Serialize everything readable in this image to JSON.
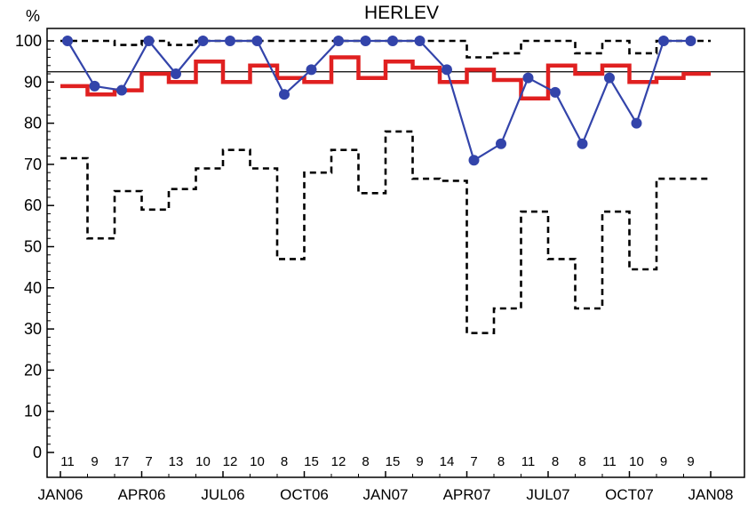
{
  "chart_data": {
    "type": "line",
    "title": "HERLEV",
    "ylabel": "%",
    "xlabel": "",
    "ylim": [
      0,
      100
    ],
    "xlim": [
      "2006-01",
      "2008-01"
    ],
    "yticks": [
      "0",
      "10",
      "20",
      "30",
      "40",
      "50",
      "60",
      "70",
      "80",
      "90",
      "100"
    ],
    "xticks": [
      {
        "label": "JAN06",
        "x": "2006-01"
      },
      {
        "label": "APR06",
        "x": "2006-04"
      },
      {
        "label": "JUL06",
        "x": "2006-07"
      },
      {
        "label": "OCT06",
        "x": "2006-10"
      },
      {
        "label": "JAN07",
        "x": "2007-01"
      },
      {
        "label": "APR07",
        "x": "2007-04"
      },
      {
        "label": "JUL07",
        "x": "2007-07"
      },
      {
        "label": "OCT07",
        "x": "2007-10"
      },
      {
        "label": "JAN08",
        "x": "2008-01"
      }
    ],
    "months": [
      "2006-01",
      "2006-02",
      "2006-03",
      "2006-04",
      "2006-05",
      "2006-06",
      "2006-07",
      "2006-08",
      "2006-09",
      "2006-10",
      "2006-11",
      "2006-12",
      "2007-01",
      "2007-02",
      "2007-03",
      "2007-04",
      "2007-05",
      "2007-06",
      "2007-07",
      "2007-08",
      "2007-09",
      "2007-10",
      "2007-11",
      "2007-12"
    ],
    "counts": [
      "11",
      "9",
      "17",
      "7",
      "13",
      "10",
      "12",
      "10",
      "8",
      "15",
      "12",
      "8",
      "15",
      "9",
      "14",
      "7",
      "8",
      "11",
      "8",
      "8",
      "11",
      "10",
      "9",
      "9"
    ],
    "reference_line": 92.5,
    "series": [
      {
        "role": "observed",
        "color": "#3344aa",
        "values": [
          100,
          89,
          88,
          100,
          92,
          100,
          100,
          100,
          87,
          93,
          100,
          100,
          100,
          100,
          93,
          71,
          75,
          91,
          87.5,
          75,
          91,
          80,
          100,
          100
        ]
      },
      {
        "role": "mean",
        "color": "#e02020",
        "values": [
          89,
          87,
          88,
          92,
          90,
          95,
          90,
          94,
          91,
          90,
          96,
          91,
          95,
          93.5,
          90,
          93,
          90.5,
          86,
          94,
          92,
          94,
          90,
          91,
          92
        ]
      },
      {
        "role": "upper-limit",
        "color": "#000000",
        "values": [
          100,
          100,
          99,
          100,
          99,
          100,
          100,
          100,
          100,
          100,
          100,
          100,
          100,
          100,
          100,
          96,
          97,
          100,
          100,
          97,
          100,
          97,
          100,
          100
        ]
      },
      {
        "role": "lower-limit",
        "color": "#000000",
        "values": [
          71.5,
          52,
          63.5,
          59,
          64,
          69,
          73.5,
          69,
          47,
          68,
          73.5,
          63,
          78,
          66.5,
          66,
          29,
          35,
          58.5,
          47,
          35,
          58.5,
          44.5,
          66.5,
          66.5
        ]
      }
    ],
    "grid": false,
    "legend": "none"
  }
}
